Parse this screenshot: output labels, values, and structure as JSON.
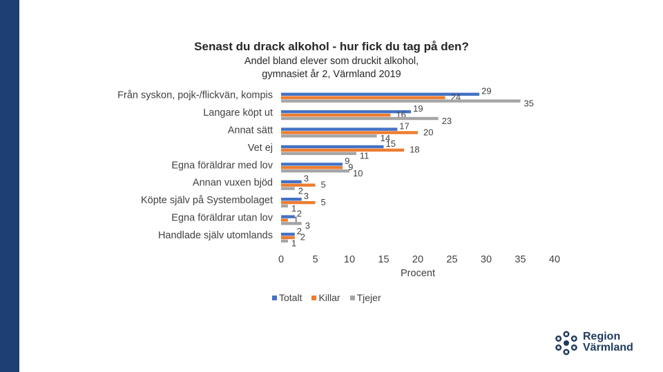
{
  "colors": {
    "sidebar": "#1d3f73",
    "totalt": "#4472c4",
    "killar": "#ed7d31",
    "tjejer": "#a5a5a5",
    "axis": "#404040"
  },
  "title": "Senast du drack alkohol - hur fick du tag på den?",
  "subtitle": "Andel bland elever som druckit alkohol, gymnasiet år 2, Värmland 2019",
  "chart_data": {
    "type": "bar",
    "orientation": "horizontal",
    "categories": [
      "Från syskon, pojk-/flickvän, kompis",
      "Langare köpt ut",
      "Annat sätt",
      "Vet ej",
      "Egna föräldrar med lov",
      "Annan vuxen bjöd",
      "Köpte själv på Systembolaget",
      "Egna föräldrar utan lov",
      "Handlade själv utomlands"
    ],
    "series": [
      {
        "name": "Totalt",
        "color": "#4472c4",
        "values": [
          29,
          19,
          17,
          15,
          9,
          3,
          3,
          2,
          2
        ]
      },
      {
        "name": "Killar",
        "color": "#ed7d31",
        "values": [
          24,
          16,
          20,
          18,
          9,
          5,
          5,
          1,
          2
        ]
      },
      {
        "name": "Tjejer",
        "color": "#a5a5a5",
        "values": [
          35,
          23,
          14,
          11,
          10,
          2,
          1,
          3,
          1
        ]
      }
    ],
    "xlabel": "Procent",
    "xlim": [
      0,
      40
    ],
    "xticks": [
      0,
      5,
      10,
      15,
      20,
      25,
      30,
      35,
      40
    ],
    "legend_position": "bottom"
  },
  "legend": [
    "Totalt",
    "Killar",
    "Tjejer"
  ],
  "logo": {
    "line1": "Region",
    "line2": "Värmland"
  }
}
